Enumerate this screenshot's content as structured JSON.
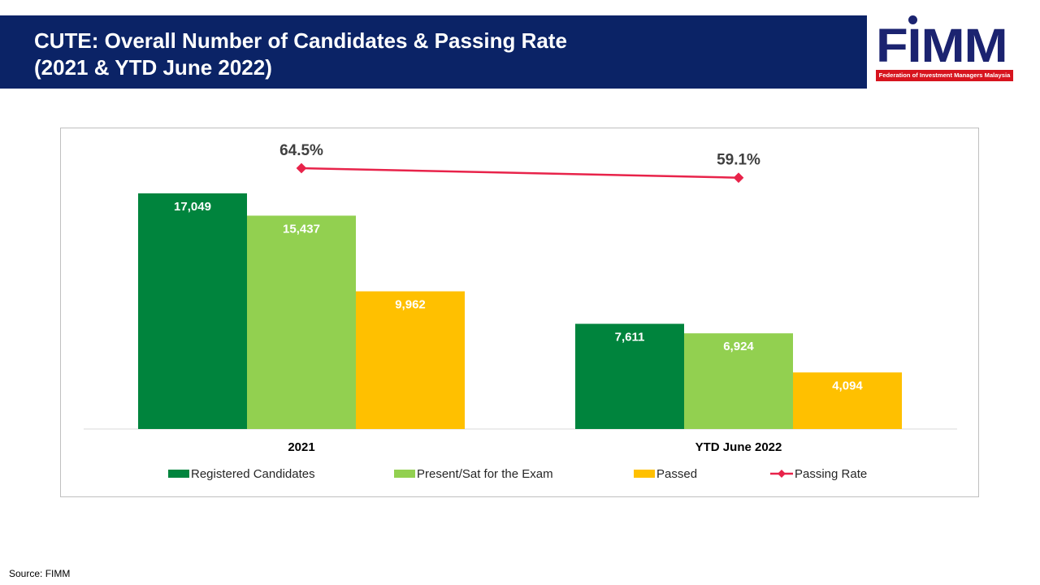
{
  "header": {
    "title_line1": "CUTE: Overall Number of Candidates & Passing Rate",
    "title_line2": "(2021 & YTD June 2022)"
  },
  "logo": {
    "name": "FIMM",
    "tagline": "Federation of Investment Managers Malaysia"
  },
  "colors": {
    "header_bg": "#0b2366",
    "registered": "#00843d",
    "present": "#92d050",
    "passed": "#ffc000",
    "passing_rate": "#e8234a"
  },
  "chart_data": {
    "type": "bar",
    "title": "",
    "categories": [
      "2021",
      "YTD June 2022"
    ],
    "series": [
      {
        "name": "Registered Candidates",
        "values": [
          17049,
          7611
        ],
        "labels": [
          "17,049",
          "7,611"
        ],
        "color": "#00843d"
      },
      {
        "name": "Present/Sat for the Exam",
        "values": [
          15437,
          6924
        ],
        "labels": [
          "15,437",
          "6,924"
        ],
        "color": "#92d050"
      },
      {
        "name": "Passed",
        "values": [
          9962,
          4094
        ],
        "labels": [
          "9,962",
          "4,094"
        ],
        "color": "#ffc000"
      }
    ],
    "line_series": {
      "name": "Passing Rate",
      "type": "line",
      "values": [
        64.5,
        59.1
      ],
      "labels": [
        "64.5%",
        "59.1%"
      ],
      "color": "#e8234a"
    },
    "legend": [
      "Registered Candidates",
      "Present/Sat for the Exam",
      "Passed",
      "Passing Rate"
    ],
    "legend_position": "bottom",
    "grid": false
  },
  "footer": {
    "source": "Source: FIMM"
  }
}
